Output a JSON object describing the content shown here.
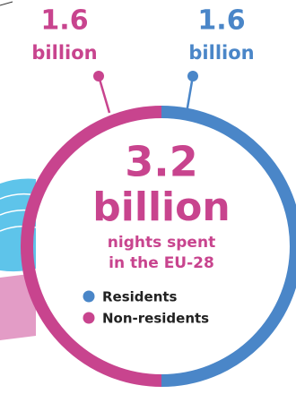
{
  "chart_data": {
    "type": "donut",
    "categories": [
      "Residents",
      "Non-residents"
    ],
    "values": [
      1.6,
      1.6
    ],
    "colors": [
      "#4a86c8",
      "#c8448e"
    ],
    "value_unit": "billion",
    "total": 3.2,
    "total_unit": "billion",
    "subtitle_lines": [
      "nights spent",
      "in the EU-28"
    ]
  }
}
